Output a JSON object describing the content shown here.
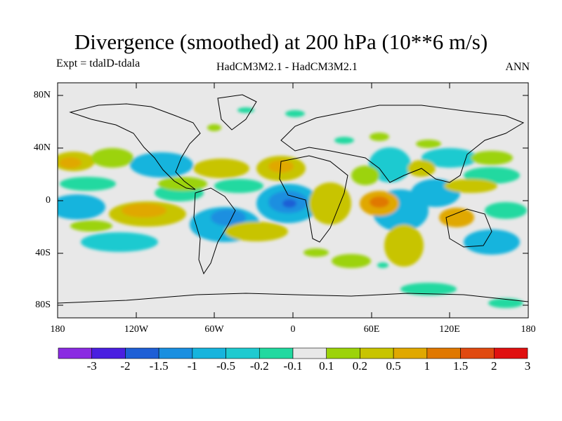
{
  "title": "Divergence (smoothed) at 200 hPa (10**6 m/s)",
  "experiment": "Expt = tdalD-tdala",
  "model_comparison": "HadCM3M2.1 - HadCM3M2.1",
  "season": "ANN",
  "axes": {
    "lat_ticks": [
      "80N",
      "40N",
      "0",
      "40S",
      "80S"
    ],
    "lon_ticks": [
      "180",
      "120W",
      "60W",
      "0",
      "60E",
      "120E",
      "180"
    ]
  },
  "colorbar": {
    "labels": [
      "-3",
      "-2",
      "-1.5",
      "-1",
      "-0.5",
      "-0.2",
      "-0.1",
      "0.1",
      "0.2",
      "0.5",
      "1",
      "1.5",
      "2",
      "3"
    ],
    "colors": [
      "#8a2be2",
      "#4a1fe0",
      "#1e5fd6",
      "#1a8fe0",
      "#17b4dd",
      "#1fcad0",
      "#22d9a0",
      "#e8e8e8",
      "#9cd30a",
      "#c8c400",
      "#e0a800",
      "#e07800",
      "#e04a10",
      "#e01010"
    ]
  },
  "map": {
    "background_color": "#e8e8e8",
    "outline_color": "#000000"
  }
}
